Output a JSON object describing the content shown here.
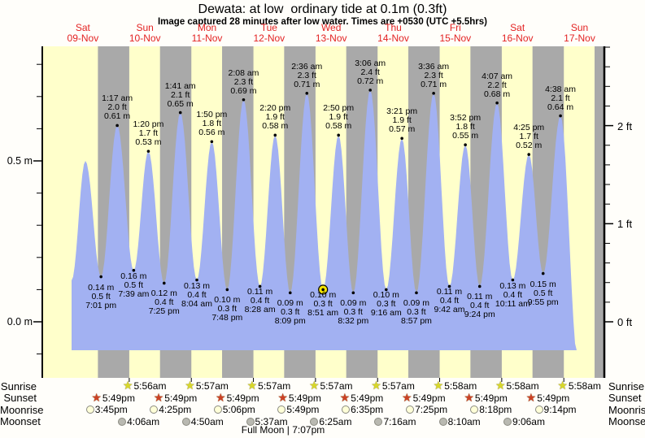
{
  "title": "Dewata: at low  ordinary tide at 0.1m (0.3ft)",
  "subtitle": "Image captured 28 minutes after low water. Times are +0530 (UTC +5.5hrs)",
  "chart_data": {
    "type": "area",
    "title": "Dewata: at low  ordinary tide at 0.1m (0.3ft)",
    "subtitle": "Image captured 28 minutes after low water. Times are +0530 (UTC +5.5hrs)",
    "legend_position": "none",
    "grid": false,
    "colors": {
      "day_band": "#ffffcb",
      "night_band": "#a9a9a9",
      "tide_fill": "#a2b1f2",
      "day_label_red": "#e32222",
      "current_marker_yellow": "#f5e400",
      "sunrise_star": "#d8d82a",
      "sunset_star": "#cc4125",
      "moonrise_circle": "#ffffd8",
      "moonset_circle": "#b9b9b1"
    },
    "days": [
      {
        "dow": "Sat",
        "date": "09-Nov"
      },
      {
        "dow": "Sun",
        "date": "10-Nov"
      },
      {
        "dow": "Mon",
        "date": "11-Nov"
      },
      {
        "dow": "Tue",
        "date": "12-Nov"
      },
      {
        "dow": "Wed",
        "date": "13-Nov"
      },
      {
        "dow": "Thu",
        "date": "14-Nov"
      },
      {
        "dow": "Fri",
        "date": "15-Nov"
      },
      {
        "dow": "Sat",
        "date": "16-Nov"
      },
      {
        "dow": "Sun",
        "date": "17-Nov"
      }
    ],
    "y_axis_left": {
      "unit": "m",
      "labels": [
        {
          "text": "0.5 m",
          "value": 0.5
        },
        {
          "text": "0.0 m",
          "value": 0.0
        }
      ]
    },
    "y_axis_right": {
      "unit": "ft",
      "labels": [
        {
          "text": "2 ft",
          "value": 2
        },
        {
          "text": "1 ft",
          "value": 1
        },
        {
          "text": "0 ft",
          "value": 0
        }
      ]
    },
    "tide_extremes": [
      {
        "type": "low",
        "day": 0,
        "time": "7:01 pm",
        "ft_label": "0.5 ft",
        "m_label": "0.14 m",
        "height_m": 0.14
      },
      {
        "type": "high",
        "day": 1,
        "time": "1:17 am",
        "ft_label": "2.0 ft",
        "m_label": "0.61 m",
        "height_m": 0.61
      },
      {
        "type": "low",
        "day": 1,
        "time": "7:39 am",
        "ft_label": "0.5 ft",
        "m_label": "0.16 m",
        "height_m": 0.16
      },
      {
        "type": "high",
        "day": 1,
        "time": "1:20 pm",
        "ft_label": "1.7 ft",
        "m_label": "0.53 m",
        "height_m": 0.53
      },
      {
        "type": "low",
        "day": 1,
        "time": "7:25 pm",
        "ft_label": "0.4 ft",
        "m_label": "0.12 m",
        "height_m": 0.12
      },
      {
        "type": "high",
        "day": 2,
        "time": "1:41 am",
        "ft_label": "2.1 ft",
        "m_label": "0.65 m",
        "height_m": 0.65
      },
      {
        "type": "low",
        "day": 2,
        "time": "8:04 am",
        "ft_label": "0.4 ft",
        "m_label": "0.13 m",
        "height_m": 0.13
      },
      {
        "type": "high",
        "day": 2,
        "time": "1:50 pm",
        "ft_label": "1.8 ft",
        "m_label": "0.56 m",
        "height_m": 0.56
      },
      {
        "type": "low",
        "day": 2,
        "time": "7:48 pm",
        "ft_label": "0.3 ft",
        "m_label": "0.10 m",
        "height_m": 0.1
      },
      {
        "type": "high",
        "day": 3,
        "time": "2:08 am",
        "ft_label": "2.3 ft",
        "m_label": "0.69 m",
        "height_m": 0.69
      },
      {
        "type": "low",
        "day": 3,
        "time": "8:28 am",
        "ft_label": "0.4 ft",
        "m_label": "0.11 m",
        "height_m": 0.11
      },
      {
        "type": "high",
        "day": 3,
        "time": "2:20 pm",
        "ft_label": "1.9 ft",
        "m_label": "0.58 m",
        "height_m": 0.58
      },
      {
        "type": "low",
        "day": 3,
        "time": "8:09 pm",
        "ft_label": "0.3 ft",
        "m_label": "0.09 m",
        "height_m": 0.09
      },
      {
        "type": "high",
        "day": 4,
        "time": "2:36 am",
        "ft_label": "2.3 ft",
        "m_label": "0.71 m",
        "height_m": 0.71
      },
      {
        "type": "low",
        "day": 4,
        "time": "8:51 am",
        "ft_label": "0.3 ft",
        "m_label": "0.10 m",
        "height_m": 0.1
      },
      {
        "type": "high",
        "day": 4,
        "time": "2:50 pm",
        "ft_label": "1.9 ft",
        "m_label": "0.58 m",
        "height_m": 0.58
      },
      {
        "type": "low",
        "day": 4,
        "time": "8:32 pm",
        "ft_label": "0.3 ft",
        "m_label": "0.09 m",
        "height_m": 0.09
      },
      {
        "type": "high",
        "day": 5,
        "time": "3:06 am",
        "ft_label": "2.4 ft",
        "m_label": "0.72 m",
        "height_m": 0.72
      },
      {
        "type": "low",
        "day": 5,
        "time": "9:16 am",
        "ft_label": "0.3 ft",
        "m_label": "0.10 m",
        "height_m": 0.1
      },
      {
        "type": "high",
        "day": 5,
        "time": "3:21 pm",
        "ft_label": "1.9 ft",
        "m_label": "0.57 m",
        "height_m": 0.57
      },
      {
        "type": "low",
        "day": 5,
        "time": "8:57 pm",
        "ft_label": "0.3 ft",
        "m_label": "0.09 m",
        "height_m": 0.09
      },
      {
        "type": "high",
        "day": 6,
        "time": "3:36 am",
        "ft_label": "2.3 ft",
        "m_label": "0.71 m",
        "height_m": 0.71
      },
      {
        "type": "low",
        "day": 6,
        "time": "9:42 am",
        "ft_label": "0.4 ft",
        "m_label": "0.11 m",
        "height_m": 0.11
      },
      {
        "type": "high",
        "day": 6,
        "time": "3:52 pm",
        "ft_label": "1.8 ft",
        "m_label": "0.55 m",
        "height_m": 0.55
      },
      {
        "type": "low",
        "day": 6,
        "time": "9:24 pm",
        "ft_label": "0.4 ft",
        "m_label": "0.11 m",
        "height_m": 0.11
      },
      {
        "type": "high",
        "day": 7,
        "time": "4:07 am",
        "ft_label": "2.2 ft",
        "m_label": "0.68 m",
        "height_m": 0.68
      },
      {
        "type": "low",
        "day": 7,
        "time": "10:11 am",
        "ft_label": "0.4 ft",
        "m_label": "0.13 m",
        "height_m": 0.13
      },
      {
        "type": "high",
        "day": 7,
        "time": "4:25 pm",
        "ft_label": "1.7 ft",
        "m_label": "0.52 m",
        "height_m": 0.52
      },
      {
        "type": "low",
        "day": 7,
        "time": "9:55 pm",
        "ft_label": "0.5 ft",
        "m_label": "0.15 m",
        "height_m": 0.15
      },
      {
        "type": "high",
        "day": 8,
        "time": "4:38 am",
        "ft_label": "2.1 ft",
        "m_label": "0.64 m",
        "height_m": 0.64
      }
    ],
    "current_position": {
      "day": 4,
      "time": "8:51 am",
      "height_m": 0.1
    },
    "sun_moon": {
      "row_labels": [
        "Sunrise",
        "Sunset",
        "Moonrise",
        "Moonset"
      ],
      "sunrise": [
        {
          "day": 1,
          "time": "5:56am"
        },
        {
          "day": 2,
          "time": "5:57am"
        },
        {
          "day": 3,
          "time": "5:57am"
        },
        {
          "day": 4,
          "time": "5:57am"
        },
        {
          "day": 5,
          "time": "5:57am"
        },
        {
          "day": 6,
          "time": "5:58am"
        },
        {
          "day": 7,
          "time": "5:58am"
        },
        {
          "day": 8,
          "time": "5:58am"
        }
      ],
      "sunset": [
        {
          "day": 0,
          "time": "5:49pm"
        },
        {
          "day": 1,
          "time": "5:49pm"
        },
        {
          "day": 2,
          "time": "5:49pm"
        },
        {
          "day": 3,
          "time": "5:49pm"
        },
        {
          "day": 4,
          "time": "5:49pm"
        },
        {
          "day": 5,
          "time": "5:49pm"
        },
        {
          "day": 6,
          "time": "5:49pm"
        },
        {
          "day": 7,
          "time": "5:49pm"
        }
      ],
      "moonrise": [
        {
          "day": 0,
          "time": "3:45pm"
        },
        {
          "day": 1,
          "time": "4:25pm"
        },
        {
          "day": 2,
          "time": "5:06pm"
        },
        {
          "day": 3,
          "time": "5:49pm"
        },
        {
          "day": 4,
          "time": "6:35pm"
        },
        {
          "day": 5,
          "time": "7:25pm"
        },
        {
          "day": 6,
          "time": "8:18pm"
        },
        {
          "day": 7,
          "time": "9:14pm"
        }
      ],
      "moonset": [
        {
          "day": 1,
          "time": "4:06am"
        },
        {
          "day": 2,
          "time": "4:50am"
        },
        {
          "day": 3,
          "time": "5:37am"
        },
        {
          "day": 4,
          "time": "6:25am"
        },
        {
          "day": 5,
          "time": "7:16am"
        },
        {
          "day": 6,
          "time": "8:10am"
        },
        {
          "day": 7,
          "time": "9:06am"
        }
      ],
      "full_moon": "Full Moon | 7:07pm"
    }
  }
}
